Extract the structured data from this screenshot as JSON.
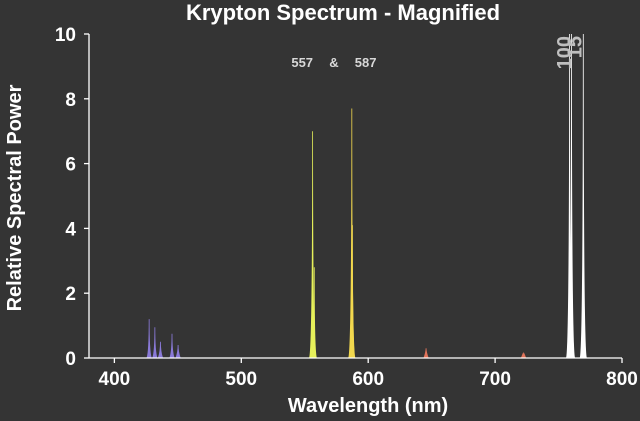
{
  "chart_data": {
    "type": "line",
    "title": "Krypton Spectrum - Magnified",
    "xlabel": "Wavelength (nm)",
    "ylabel": "Relative Spectral Power",
    "xlim": [
      380,
      800
    ],
    "ylim": [
      0,
      10
    ],
    "x_ticks": [
      400,
      500,
      600,
      700,
      800
    ],
    "y_ticks": [
      0,
      2,
      4,
      6,
      8,
      10
    ],
    "grid": false,
    "legend": "none",
    "annotations": [
      {
        "text": "557",
        "x": 548
      },
      {
        "text": "&",
        "x": 573
      },
      {
        "text": "587",
        "x": 598
      }
    ],
    "offscale_labels": [
      {
        "text": "100",
        "x": 760
      },
      {
        "text": "15",
        "x": 768
      }
    ],
    "series": [
      {
        "values": [
          [
            427.4,
            1.2
          ],
          [
            431.9,
            0.95
          ],
          [
            436.3,
            0.5
          ],
          [
            445.4,
            0.75
          ],
          [
            450.2,
            0.4
          ]
        ],
        "color": "#8a7ad8"
      },
      {
        "values": [
          [
            556.2,
            7.0
          ],
          [
            557.5,
            2.8
          ]
        ],
        "color": "#e6f05a"
      },
      {
        "values": [
          [
            587.1,
            7.7
          ],
          [
            587.6,
            4.1
          ]
        ],
        "color": "#f2d84e"
      },
      {
        "values": [
          [
            645.6,
            0.3
          ],
          [
            722.4,
            0.15
          ]
        ],
        "color": "#e0735a"
      },
      {
        "values": [
          [
            758.7,
            10.0
          ],
          [
            760.2,
            10.0
          ],
          [
            769.5,
            10.0
          ]
        ],
        "color": "#ffffff"
      }
    ]
  }
}
